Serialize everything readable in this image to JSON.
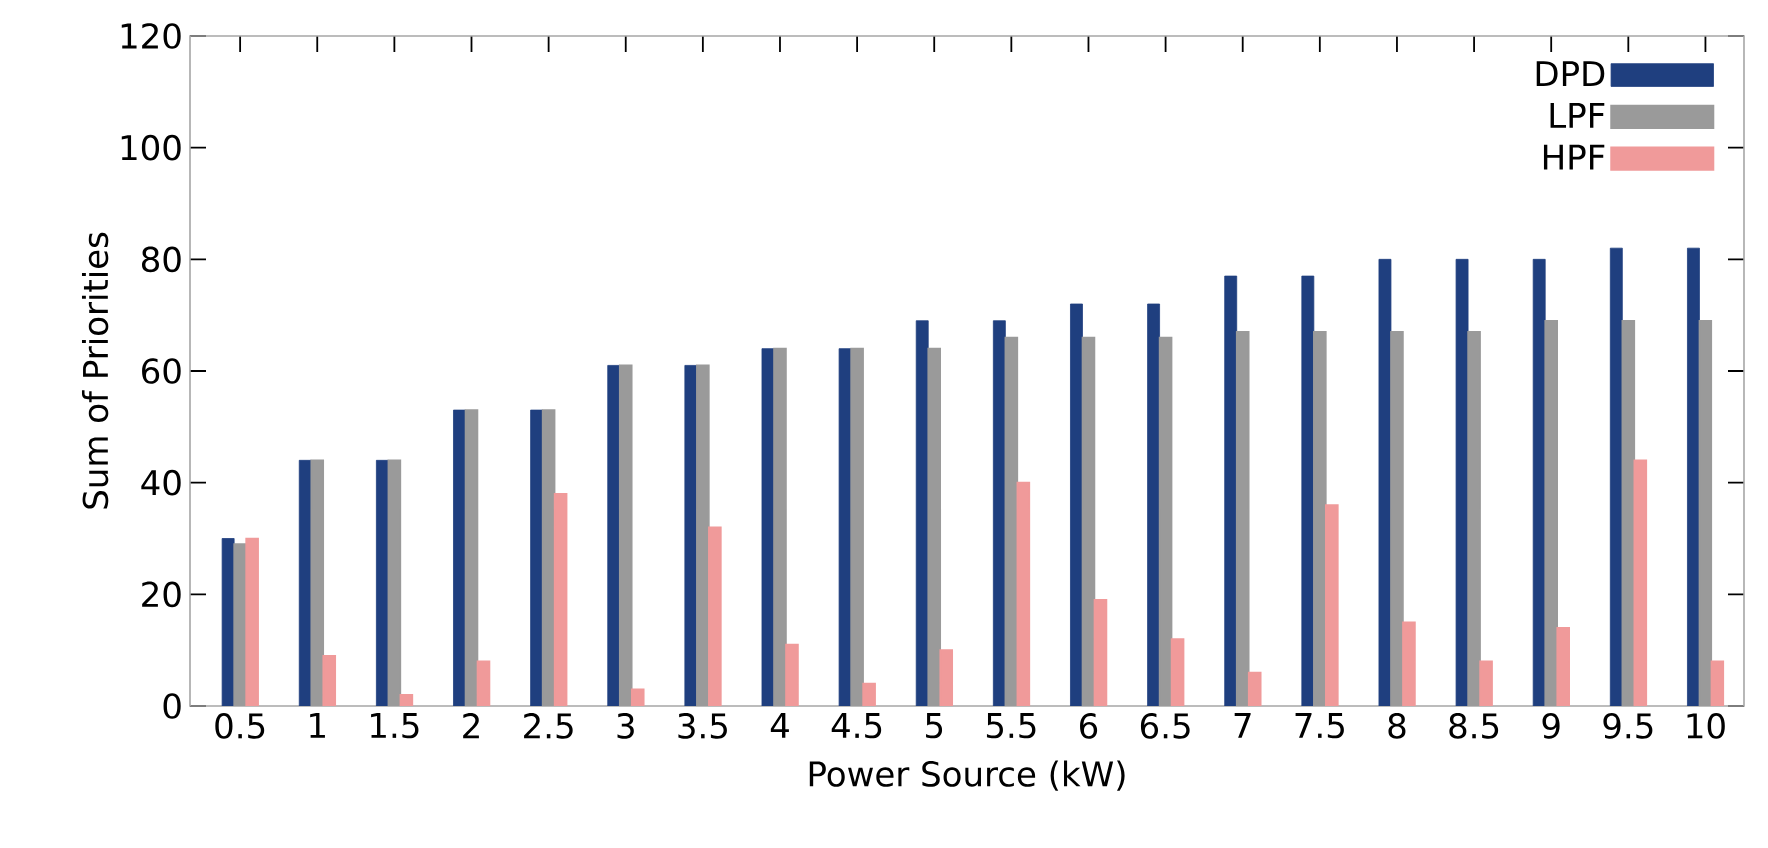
{
  "chart_data": {
    "type": "bar",
    "xlabel": "Power Source (kW)",
    "ylabel": "Sum of Priorities",
    "categories": [
      "0.5",
      "1",
      "1.5",
      "2",
      "2.5",
      "3",
      "3.5",
      "4",
      "4.5",
      "5",
      "5.5",
      "6",
      "6.5",
      "7",
      "7.5",
      "8",
      "8.5",
      "9",
      "9.5",
      "10"
    ],
    "series": [
      {
        "name": "DPD",
        "color": "#1f3f7f",
        "values": [
          30,
          44,
          44,
          53,
          53,
          61,
          61,
          64,
          64,
          69,
          69,
          72,
          72,
          77,
          77,
          80,
          80,
          80,
          82,
          82
        ]
      },
      {
        "name": "LPF",
        "color": "#9a9a9a",
        "values": [
          29,
          44,
          44,
          53,
          53,
          61,
          61,
          64,
          64,
          64,
          66,
          66,
          66,
          67,
          67,
          67,
          67,
          69,
          69,
          69
        ]
      },
      {
        "name": "HPF",
        "color": "#f09a9a",
        "values": [
          30,
          9,
          2,
          8,
          38,
          3,
          32,
          11,
          4,
          10,
          40,
          19,
          12,
          6,
          36,
          15,
          8,
          14,
          44,
          8
        ]
      }
    ],
    "ylim": [
      0,
      120
    ],
    "yticks": [
      0,
      20,
      40,
      60,
      80,
      100,
      120
    ],
    "grid": false,
    "legend": "top right"
  }
}
